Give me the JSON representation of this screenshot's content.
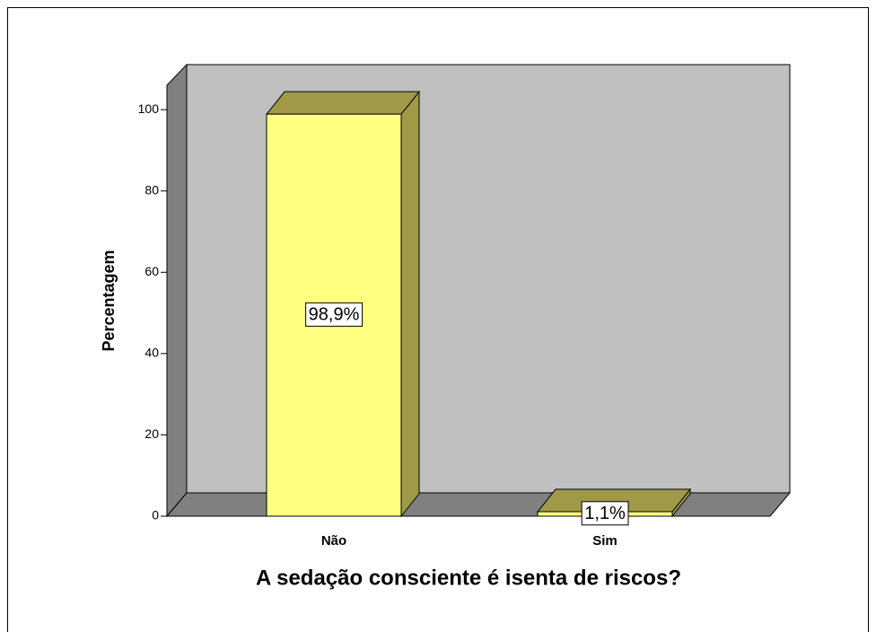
{
  "chart_data": {
    "type": "bar",
    "xlabel": "A sedação consciente é isenta de riscos?",
    "ylabel": "Percentagem",
    "categories": [
      "Não",
      "Sim"
    ],
    "values": [
      98.9,
      1.1
    ],
    "value_labels": [
      "98,9%",
      "1,1%"
    ],
    "color": "#ffff80",
    "ylim": [
      0,
      106
    ],
    "yticks": [
      0,
      20,
      40,
      60,
      80,
      100
    ]
  }
}
